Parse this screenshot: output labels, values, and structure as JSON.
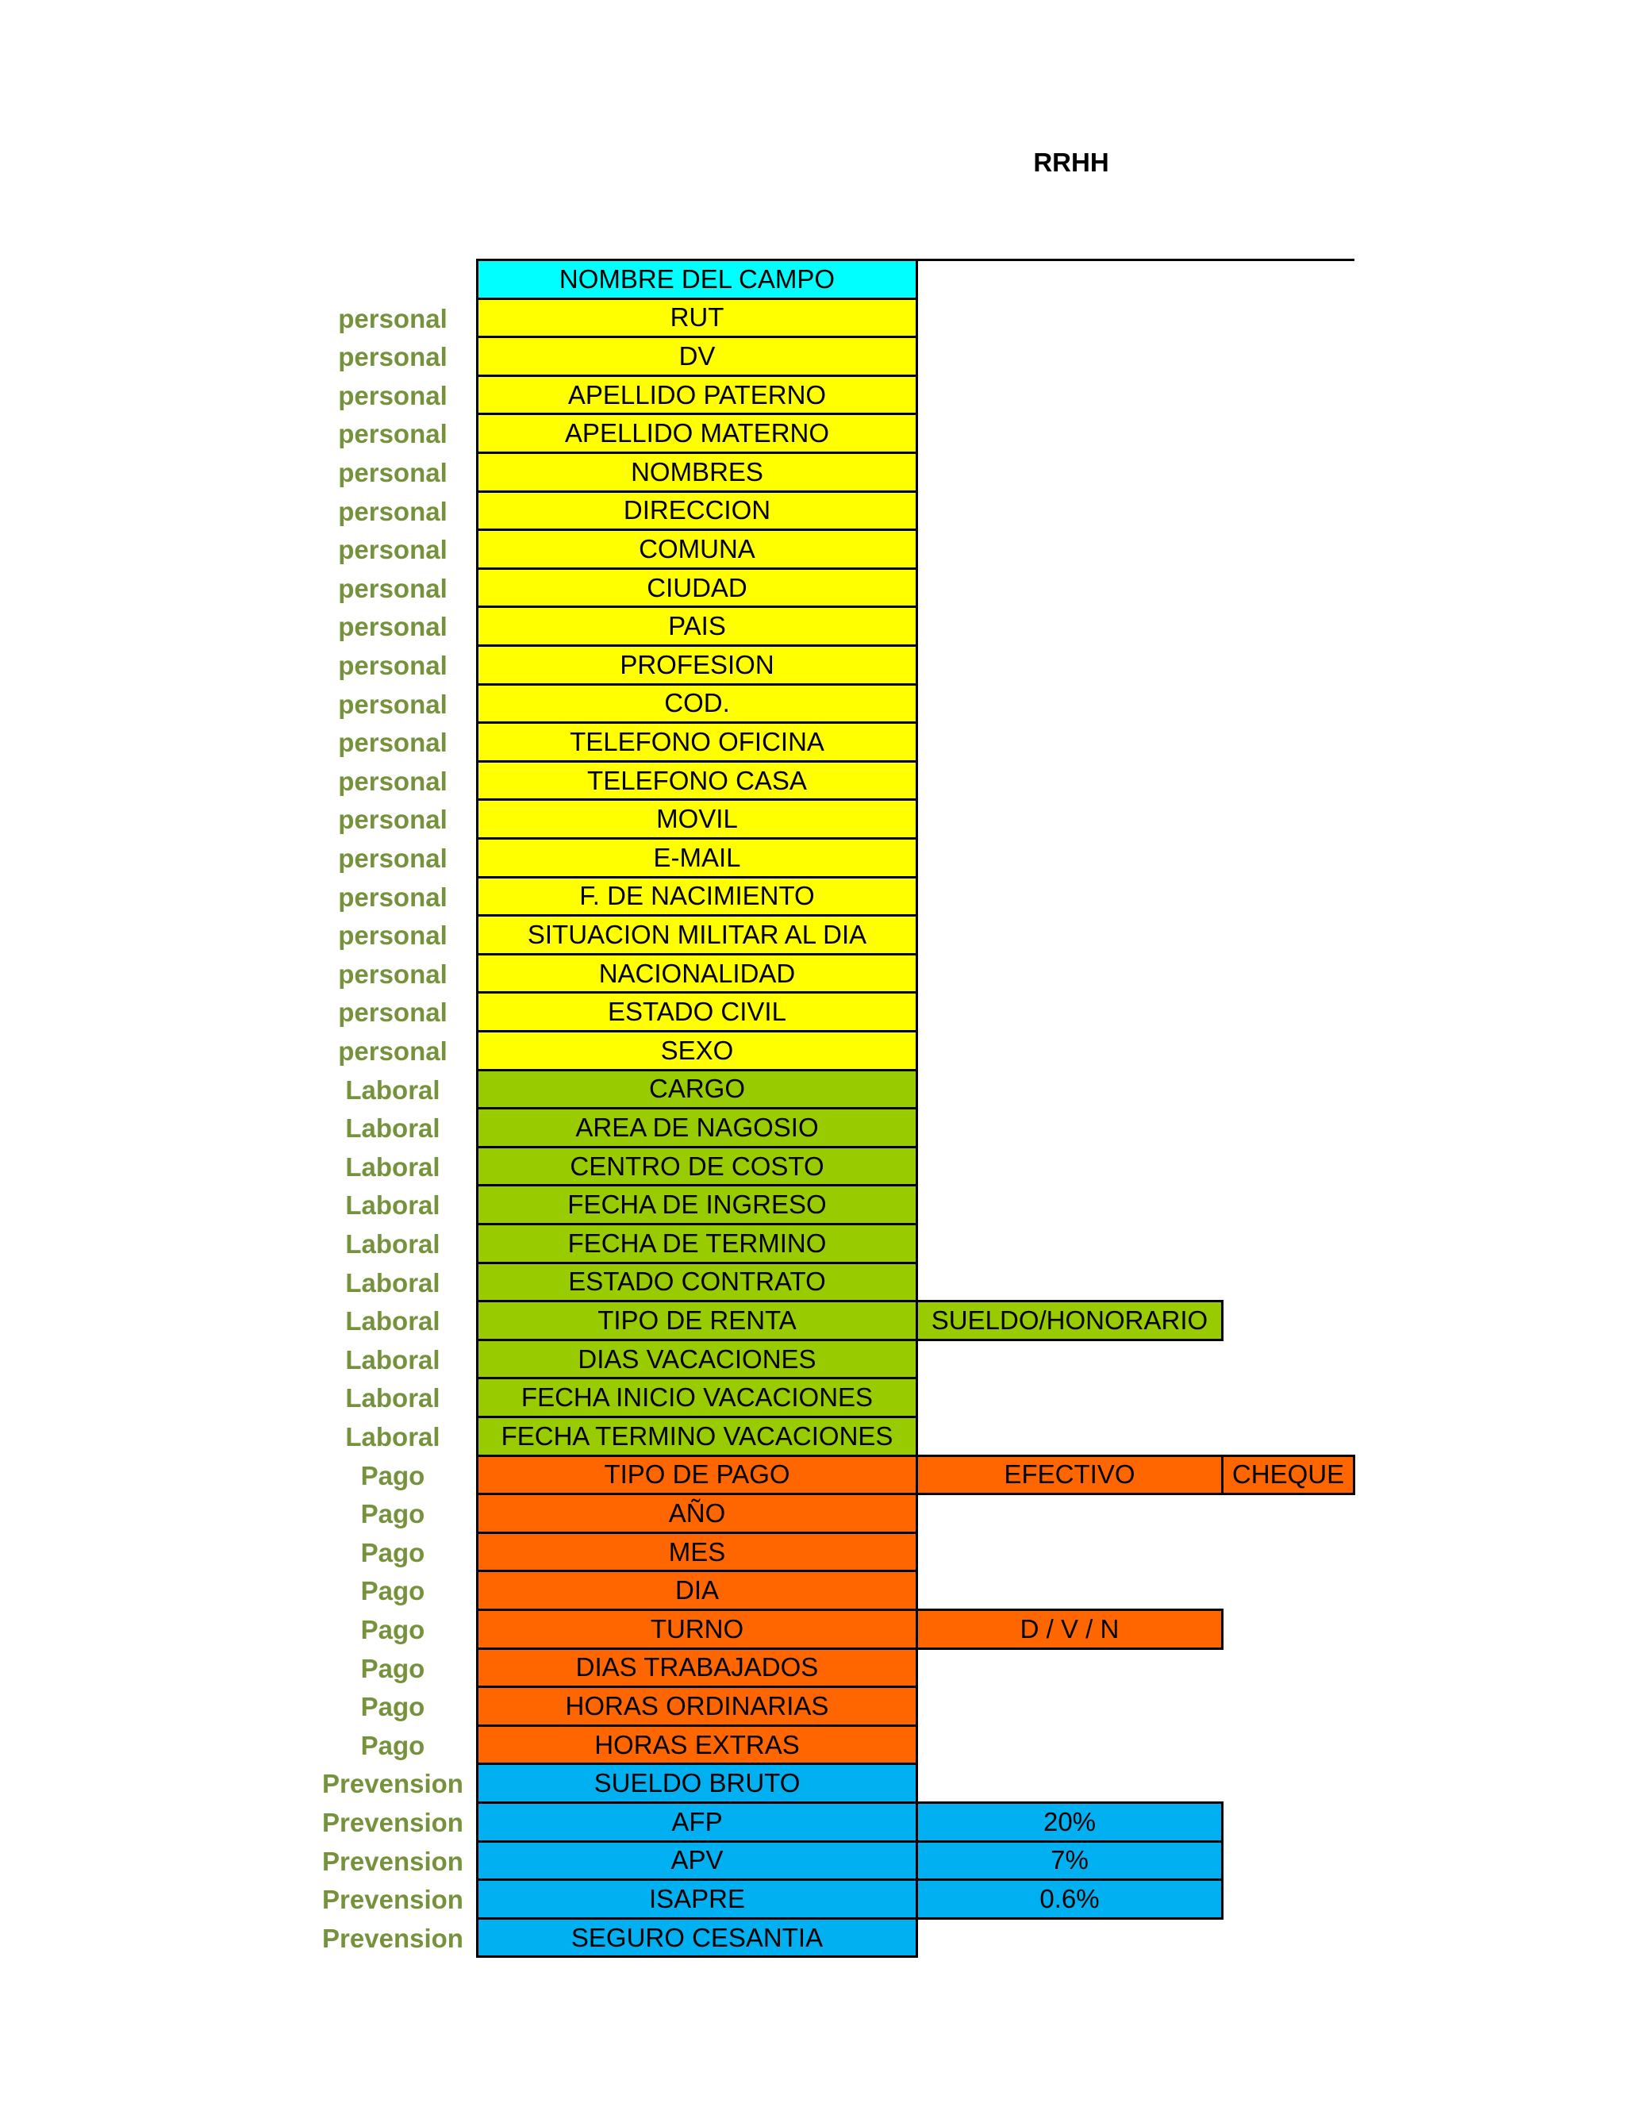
{
  "title": "RRHH",
  "colors": {
    "header": "#00ffff",
    "personal": "#ffff00",
    "laboral": "#99cc00",
    "pago": "#ff6600",
    "prevension": "#00b0f0"
  },
  "header": {
    "label": "NOMBRE DEL CAMPO"
  },
  "rows": [
    {
      "category": "personal",
      "field": "RUT",
      "group": "personal"
    },
    {
      "category": "personal",
      "field": "DV",
      "group": "personal"
    },
    {
      "category": "personal",
      "field": "APELLIDO PATERNO",
      "group": "personal"
    },
    {
      "category": "personal",
      "field": "APELLIDO MATERNO",
      "group": "personal"
    },
    {
      "category": "personal",
      "field": "NOMBRES",
      "group": "personal"
    },
    {
      "category": "personal",
      "field": "DIRECCION",
      "group": "personal"
    },
    {
      "category": "personal",
      "field": "COMUNA",
      "group": "personal"
    },
    {
      "category": "personal",
      "field": "CIUDAD",
      "group": "personal"
    },
    {
      "category": "personal",
      "field": "PAIS",
      "group": "personal"
    },
    {
      "category": "personal",
      "field": "PROFESION",
      "group": "personal"
    },
    {
      "category": "personal",
      "field": "COD.",
      "group": "personal"
    },
    {
      "category": "personal",
      "field": "TELEFONO OFICINA",
      "group": "personal"
    },
    {
      "category": "personal",
      "field": "TELEFONO CASA",
      "group": "personal"
    },
    {
      "category": "personal",
      "field": "MOVIL",
      "group": "personal"
    },
    {
      "category": "personal",
      "field": "E-MAIL",
      "group": "personal"
    },
    {
      "category": "personal",
      "field": "F. DE NACIMIENTO",
      "group": "personal"
    },
    {
      "category": "personal",
      "field": "SITUACION MILITAR AL DIA",
      "group": "personal"
    },
    {
      "category": "personal",
      "field": "NACIONALIDAD",
      "group": "personal"
    },
    {
      "category": "personal",
      "field": "ESTADO CIVIL",
      "group": "personal"
    },
    {
      "category": "personal",
      "field": "SEXO",
      "group": "personal"
    },
    {
      "category": "Laboral",
      "field": "CARGO",
      "group": "laboral"
    },
    {
      "category": "Laboral",
      "field": "AREA DE NAGOSIO",
      "group": "laboral"
    },
    {
      "category": "Laboral",
      "field": "CENTRO DE COSTO",
      "group": "laboral"
    },
    {
      "category": "Laboral",
      "field": "FECHA DE INGRESO",
      "group": "laboral"
    },
    {
      "category": "Laboral",
      "field": "FECHA DE TERMINO",
      "group": "laboral"
    },
    {
      "category": "Laboral",
      "field": "ESTADO CONTRATO",
      "group": "laboral"
    },
    {
      "category": "Laboral",
      "field": "TIPO DE RENTA",
      "group": "laboral",
      "options": [
        "SUELDO/HONORARIO"
      ]
    },
    {
      "category": "Laboral",
      "field": "DIAS VACACIONES",
      "group": "laboral"
    },
    {
      "category": "Laboral",
      "field": "FECHA INICIO VACACIONES",
      "group": "laboral"
    },
    {
      "category": "Laboral",
      "field": "FECHA TERMINO VACACIONES",
      "group": "laboral"
    },
    {
      "category": "Pago",
      "field": "TIPO DE PAGO",
      "group": "pago",
      "options": [
        "EFECTIVO",
        "CHEQUE"
      ]
    },
    {
      "category": "Pago",
      "field": "AÑO",
      "group": "pago"
    },
    {
      "category": "Pago",
      "field": "MES",
      "group": "pago"
    },
    {
      "category": "Pago",
      "field": "DIA",
      "group": "pago"
    },
    {
      "category": "Pago",
      "field": "TURNO",
      "group": "pago",
      "options": [
        "D / V / N"
      ]
    },
    {
      "category": "Pago",
      "field": "DIAS TRABAJADOS",
      "group": "pago"
    },
    {
      "category": "Pago",
      "field": "HORAS ORDINARIAS",
      "group": "pago"
    },
    {
      "category": "Pago",
      "field": "HORAS EXTRAS",
      "group": "pago"
    },
    {
      "category": "Prevension",
      "field": "SUELDO BRUTO",
      "group": "prevension"
    },
    {
      "category": "Prevension",
      "field": "AFP",
      "group": "prevension",
      "options": [
        "20%"
      ]
    },
    {
      "category": "Prevension",
      "field": "APV",
      "group": "prevension",
      "options": [
        "7%"
      ]
    },
    {
      "category": "Prevension",
      "field": "ISAPRE",
      "group": "prevension",
      "options": [
        "0.6%"
      ]
    },
    {
      "category": "Prevension",
      "field": "SEGURO CESANTIA",
      "group": "prevension"
    }
  ]
}
